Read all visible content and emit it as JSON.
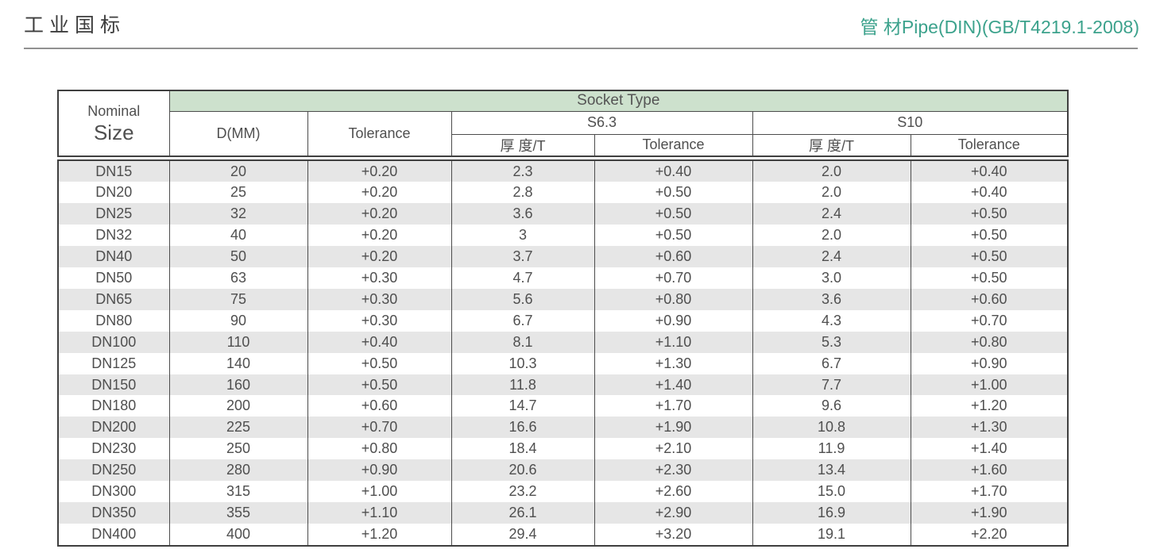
{
  "page": {
    "title_left": "工业国标",
    "title_right": "管 材Pipe(DIN)(GB/T4219.1-2008)",
    "accent_color": "#3ca28c",
    "band_color": "#cde1cd",
    "stripe_color": "#e6e6e6"
  },
  "table": {
    "nominal_line1": "Nominal",
    "nominal_line2": "Size",
    "socket_type": "Socket Type",
    "col_d": "D(MM)",
    "col_tolerance": "Tolerance",
    "s63": "S6.3",
    "s10": "S10",
    "thickness": "厚 度/T",
    "rows": [
      [
        "DN15",
        "20",
        "+0.20",
        "2.3",
        "+0.40",
        "2.0",
        "+0.40"
      ],
      [
        "DN20",
        "25",
        "+0.20",
        "2.8",
        "+0.50",
        "2.0",
        "+0.40"
      ],
      [
        "DN25",
        "32",
        "+0.20",
        "3.6",
        "+0.50",
        "2.4",
        "+0.50"
      ],
      [
        "DN32",
        "40",
        "+0.20",
        "3",
        "+0.50",
        "2.0",
        "+0.50"
      ],
      [
        "DN40",
        "50",
        "+0.20",
        "3.7",
        "+0.60",
        "2.4",
        "+0.50"
      ],
      [
        "DN50",
        "63",
        "+0.30",
        "4.7",
        "+0.70",
        "3.0",
        "+0.50"
      ],
      [
        "DN65",
        "75",
        "+0.30",
        "5.6",
        "+0.80",
        "3.6",
        "+0.60"
      ],
      [
        "DN80",
        "90",
        "+0.30",
        "6.7",
        "+0.90",
        "4.3",
        "+0.70"
      ],
      [
        "DN100",
        "110",
        "+0.40",
        "8.1",
        "+1.10",
        "5.3",
        "+0.80"
      ],
      [
        "DN125",
        "140",
        "+0.50",
        "10.3",
        "+1.30",
        "6.7",
        "+0.90"
      ],
      [
        "DN150",
        "160",
        "+0.50",
        "11.8",
        "+1.40",
        "7.7",
        "+1.00"
      ],
      [
        "DN180",
        "200",
        "+0.60",
        "14.7",
        "+1.70",
        "9.6",
        "+1.20"
      ],
      [
        "DN200",
        "225",
        "+0.70",
        "16.6",
        "+1.90",
        "10.8",
        "+1.30"
      ],
      [
        "DN230",
        "250",
        "+0.80",
        "18.4",
        "+2.10",
        "11.9",
        "+1.40"
      ],
      [
        "DN250",
        "280",
        "+0.90",
        "20.6",
        "+2.30",
        "13.4",
        "+1.60"
      ],
      [
        "DN300",
        "315",
        "+1.00",
        "23.2",
        "+2.60",
        "15.0",
        "+1.70"
      ],
      [
        "DN350",
        "355",
        "+1.10",
        "26.1",
        "+2.90",
        "16.9",
        "+1.90"
      ],
      [
        "DN400",
        "400",
        "+1.20",
        "29.4",
        "+3.20",
        "19.1",
        "+2.20"
      ]
    ]
  }
}
